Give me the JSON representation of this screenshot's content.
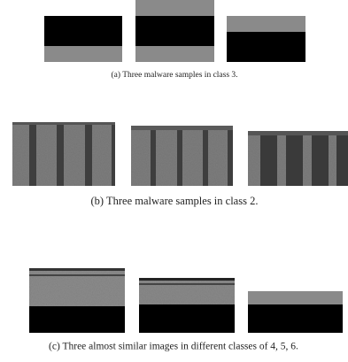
{
  "figure": {
    "captions": [
      "(a) Three malware samples in class 3.",
      "(b) Three malware samples in class 2.",
      "(c) Three almost similar images in different classes of 4, 5, 6."
    ]
  }
}
